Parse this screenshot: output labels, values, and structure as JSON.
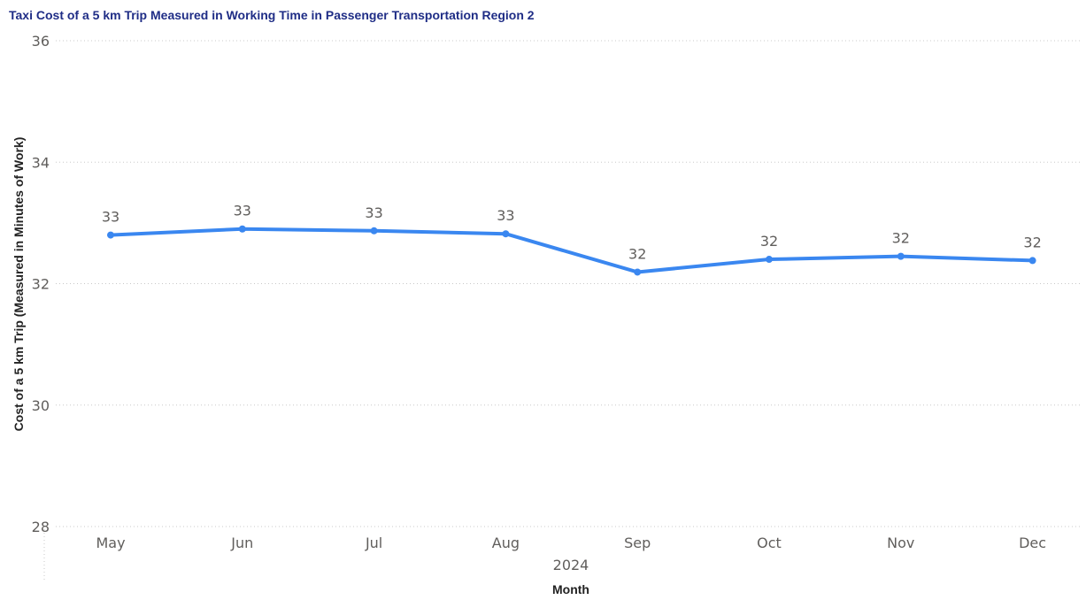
{
  "chart_data": {
    "type": "line",
    "title": "Taxi Cost of a 5 km Trip Measured in Working Time in Passenger Transportation Region 2",
    "xlabel": "Month",
    "x_group_label": "2024",
    "ylabel": "Cost of a 5 km Trip (Measured in Minutes of Work)",
    "categories": [
      "May",
      "Jun",
      "Jul",
      "Aug",
      "Sep",
      "Oct",
      "Nov",
      "Dec"
    ],
    "series": [
      {
        "values": [
          32.8,
          32.9,
          32.87,
          32.82,
          32.19,
          32.4,
          32.45,
          32.38
        ],
        "data_labels": [
          "33",
          "33",
          "33",
          "33",
          "32",
          "32",
          "32",
          "32"
        ],
        "color": "#3a87f0"
      }
    ],
    "ylim": [
      28,
      36
    ],
    "yticks": [
      28,
      30,
      32,
      34,
      36
    ],
    "grid": true,
    "legend": "none"
  }
}
